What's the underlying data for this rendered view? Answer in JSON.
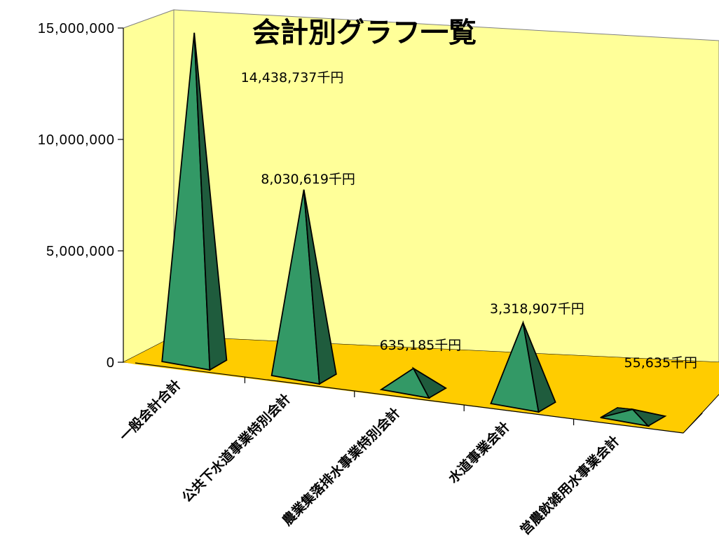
{
  "chart_data": {
    "type": "bar",
    "bar_shape": "3d-pyramid",
    "title": "会計別グラフ一覧",
    "categories": [
      "一般会計合計",
      "公共下水道事業特別会計",
      "農業集落排水事業特別会計",
      "水道事業会計",
      "営農飲雑用水事業会計"
    ],
    "values": [
      14438737,
      8030619,
      635185,
      3318907,
      55635
    ],
    "data_labels": [
      "14,438,737千円",
      "8,030,619千円",
      "635,185千円",
      "3,318,907千円",
      "55,635千円"
    ],
    "y_ticks": [
      0,
      5000000,
      10000000,
      15000000
    ],
    "y_tick_labels": [
      "0",
      "5,000,000",
      "10,000,000",
      "15,000,000"
    ],
    "ylim": [
      0,
      15000000
    ],
    "xlabel": "",
    "ylabel": "",
    "legend": "none",
    "grid": false,
    "colors": {
      "back_wall": "#ffff99",
      "floor": "#ffcc00",
      "pyramid_front": "#339966",
      "pyramid_side": "#1f5c3d",
      "pyramid_light": "#3fae76"
    }
  }
}
